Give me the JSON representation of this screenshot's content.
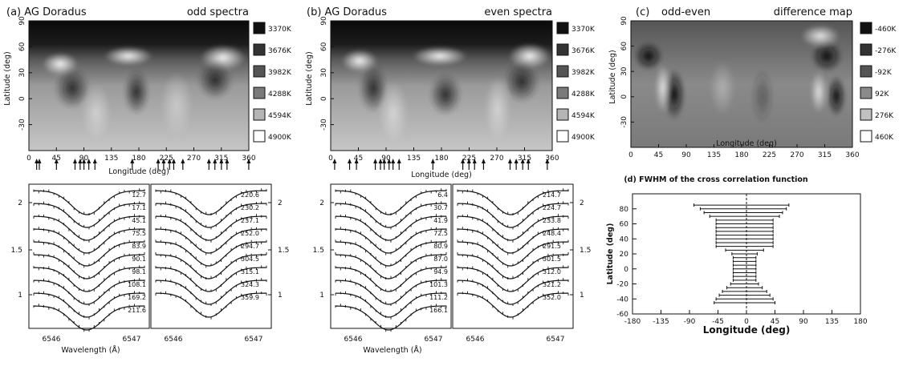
{
  "panel_a": {
    "label": "(a) AG Doradus",
    "subtitle": "odd spectra",
    "ylabel": "Latitude (deg)",
    "xlabel": "Longitude (deg)",
    "lat_ticks": [
      "90",
      "60",
      "30",
      "0",
      "-30"
    ],
    "lon_ticks": [
      "0",
      "45",
      "90",
      "135",
      "180",
      "225",
      "270",
      "315",
      "360"
    ],
    "colorkey": [
      "3370K",
      "3676K",
      "3982K",
      "4288K",
      "4594K",
      "4900K"
    ]
  },
  "panel_b": {
    "label": "(b) AG Doradus",
    "subtitle": "even spectra",
    "ylabel": "Latitude (deg)",
    "xlabel": "Longitude (deg)",
    "lat_ticks": [
      "90",
      "60",
      "30",
      "0",
      "-30"
    ],
    "lon_ticks": [
      "0",
      "45",
      "90",
      "135",
      "180",
      "225",
      "270",
      "315",
      "360"
    ],
    "colorkey": [
      "3370K",
      "3676K",
      "3982K",
      "4288K",
      "4594K",
      "4900K"
    ]
  },
  "panel_c": {
    "label": "(c)",
    "subtitle_left": "odd-even",
    "subtitle_right": "difference map",
    "ylabel": "Latitude (deg)",
    "xlabel": "Longitude (deg)",
    "lat_ticks": [
      "90",
      "60",
      "30",
      "0",
      "-30"
    ],
    "lon_ticks": [
      "0",
      "45",
      "90",
      "135",
      "180",
      "225",
      "270",
      "315",
      "360"
    ],
    "colorkey": [
      "-460K",
      "-276K",
      "-92K",
      "92K",
      "276K",
      "460K"
    ]
  },
  "profiles_a": {
    "xlabel": "Wavelength (Å)",
    "xticks": [
      "6546",
      "6547"
    ],
    "yticks": [
      "2",
      "1.5",
      "1"
    ],
    "left_phases": [
      "12.7",
      "17.1",
      "45.1",
      "75.5",
      "83.9",
      "90.1",
      "98.1",
      "108.1",
      "169.2",
      "211.6"
    ],
    "right_phases": [
      "220.6",
      "230.2",
      "237.1",
      "252.0",
      "294.7",
      "304.5",
      "315.1",
      "324.3",
      "359.9"
    ],
    "right_yticks": [
      "2",
      "1.5",
      "1"
    ]
  },
  "profiles_b": {
    "xlabel": "Wavelength (Å)",
    "xticks": [
      "6546",
      "6547"
    ],
    "yticks": [
      "2",
      "1.5",
      "1"
    ],
    "left_phases": [
      "6.4",
      "30.7",
      "41.9",
      "72.5",
      "80.9",
      "87.0",
      "94.9",
      "101.3",
      "111.2",
      "166.1"
    ],
    "right_phases": [
      "214.7",
      "224.7",
      "233.8",
      "248.4",
      "291.5",
      "301.5",
      "312.0",
      "321.2",
      "352.0"
    ],
    "right_yticks": [
      "2",
      "1.5",
      "1"
    ]
  },
  "phase_arrows_a": [
    12.7,
    17.1,
    45.1,
    75.5,
    83.9,
    90.1,
    98.1,
    108.1,
    169.2,
    211.6,
    220.6,
    230.2,
    237.1,
    252.0,
    294.7,
    304.5,
    315.1,
    324.3,
    359.9
  ],
  "phase_arrows_b": [
    6.4,
    30.7,
    41.9,
    72.5,
    80.9,
    87.0,
    94.9,
    101.3,
    111.2,
    166.1,
    214.7,
    224.7,
    233.8,
    248.4,
    291.5,
    301.5,
    312.0,
    321.2,
    352.0
  ],
  "chart_data": {
    "type": "scatter",
    "title": "(d) FWHM of the cross correlation function",
    "xlabel": "Longitude (deg)",
    "ylabel": "Latitude (deg)",
    "xlim": [
      -180,
      180
    ],
    "ylim": [
      -60,
      100
    ],
    "xticks": [
      "-180",
      "-135",
      "-90",
      "-45",
      "0",
      "45",
      "90",
      "135",
      "180"
    ],
    "yticks": [
      "80",
      "60",
      "40",
      "20",
      "0",
      "-20",
      "-40",
      "-60"
    ],
    "series": [
      {
        "latitude": [
          85,
          80,
          75,
          70,
          65,
          60,
          55,
          50,
          45,
          40,
          35,
          30,
          25,
          20,
          15,
          10,
          5,
          0,
          -5,
          -10,
          -15,
          -20,
          -25,
          -30,
          -35,
          -40,
          -45
        ],
        "lon_center": [
          -8,
          -5,
          -5,
          -3,
          -3,
          -3,
          -3,
          -3,
          -3,
          -3,
          -3,
          -3,
          -3,
          -3,
          -3,
          -3,
          -3,
          -3,
          -3,
          -3,
          -3,
          -3,
          -3,
          -3,
          -3,
          -3,
          -3
        ],
        "fwhm_halfwidth": [
          75,
          68,
          62,
          55,
          45,
          45,
          45,
          45,
          45,
          45,
          45,
          45,
          30,
          20,
          18,
          18,
          18,
          18,
          18,
          18,
          18,
          22,
          28,
          35,
          40,
          45,
          48
        ]
      }
    ]
  }
}
